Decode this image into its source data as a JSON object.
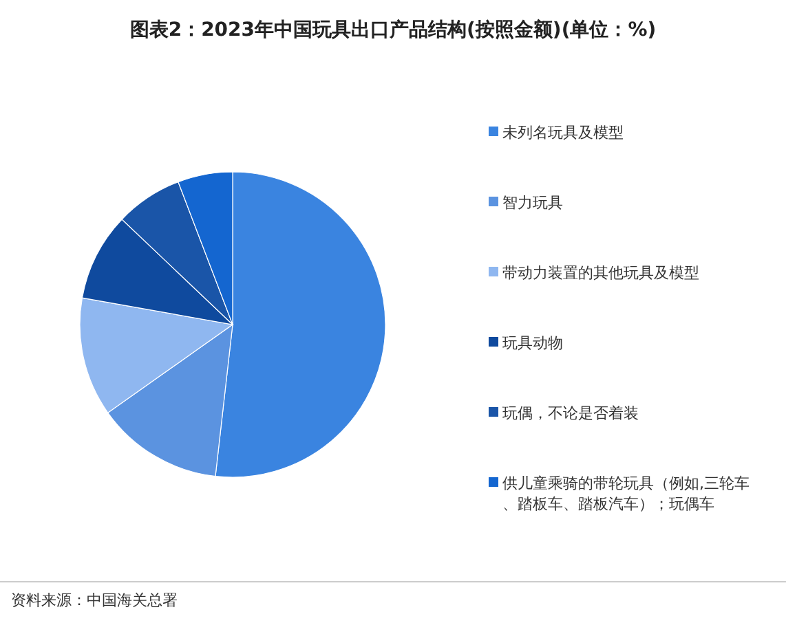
{
  "chart_data": {
    "type": "pie",
    "title": "图表2：2023年中国玩具出口产品结构(按照金额)(单位：%)",
    "categories": [
      "未列名玩具及模型",
      "智力玩具",
      "带动力装置的其他玩具及模型",
      "玩具动物",
      "玩偶，不论是否着装",
      "供儿童乘骑的带轮玩具（例如,三轮车、踏板车、踏板汽车）；玩偶车"
    ],
    "values": [
      51.8,
      13.4,
      12.6,
      9.3,
      7.1,
      5.8
    ],
    "colors": [
      "#3a84e0",
      "#5b93e0",
      "#8fb7f0",
      "#0f4a9e",
      "#1a55a8",
      "#1466d0"
    ],
    "legend": "right",
    "annotations": [
      "资料来源：中国海关总署"
    ]
  }
}
